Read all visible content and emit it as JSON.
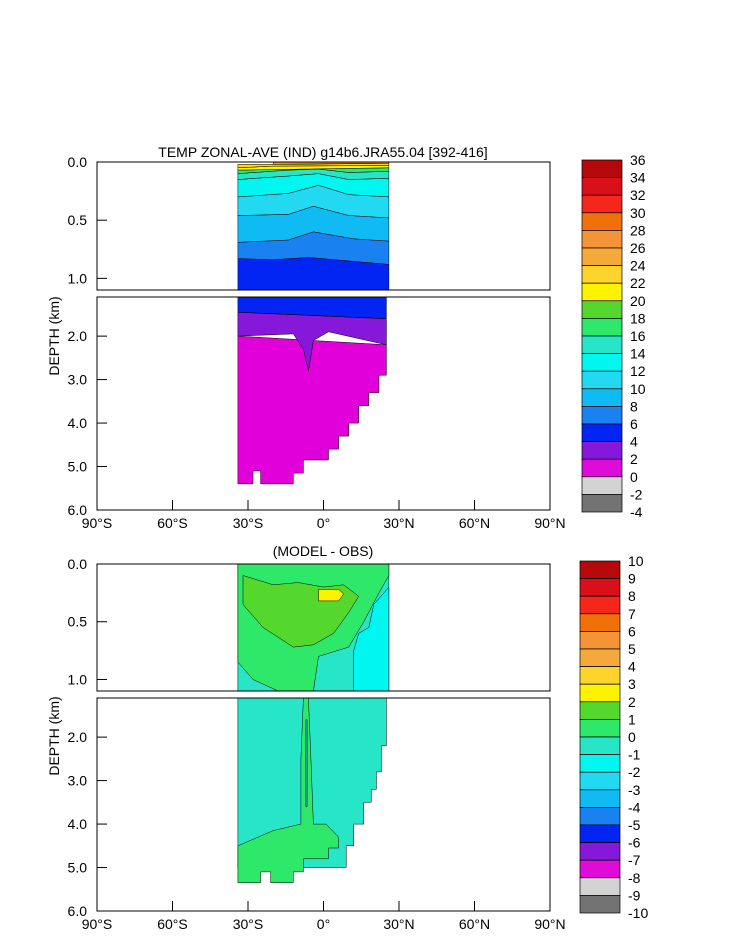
{
  "chart_data": [
    {
      "type": "heatmap",
      "title": "TEMP ZONAL-AVE (IND) g14b6.JRA55.04 [392-416]",
      "ylabel": "DEPTH (km)",
      "xlabel": "",
      "x_ticks": [
        "90°S",
        "60°S",
        "30°S",
        "0°",
        "30°N",
        "60°N",
        "90°N"
      ],
      "x_tick_values": [
        -90,
        -60,
        -30,
        0,
        30,
        60,
        90
      ],
      "y_ticks_upper": [
        "0.0",
        "0.5",
        "1.0"
      ],
      "y_ticks_upper_values": [
        0.0,
        0.5,
        1.0
      ],
      "y_ticks_lower": [
        "2.0",
        "3.0",
        "4.0",
        "5.0",
        "6.0"
      ],
      "y_ticks_lower_values": [
        2.0,
        3.0,
        4.0,
        5.0,
        6.0
      ],
      "upper_ylim": [
        0,
        1.1
      ],
      "lower_ylim": [
        1.1,
        6.0
      ],
      "data_xlim": [
        -34,
        26
      ],
      "legend": "colorbar-right",
      "colorbar_labels": [
        "36",
        "34",
        "32",
        "30",
        "28",
        "26",
        "24",
        "22",
        "20",
        "18",
        "16",
        "14",
        "12",
        "10",
        "8",
        "6",
        "4",
        "2",
        "0",
        "-2",
        "-4"
      ],
      "colorbar_colors": [
        "#b5080b",
        "#d9101a",
        "#f5261a",
        "#f0700a",
        "#f49436",
        "#f6a93b",
        "#fdd42c",
        "#fdf301",
        "#54d82d",
        "#2ee869",
        "#26e6c7",
        "#00f7ef",
        "#23d9f2",
        "#10bbf4",
        "#1a82f0",
        "#0225f4",
        "#8618da",
        "#de0bd9",
        "#e100da",
        "#d3d3d3",
        "#737373"
      ],
      "colorbar_fill_colors": [
        "#b5080b",
        "#d9101a",
        "#f5261a",
        "#f0700a",
        "#f49436",
        "#f6a93b",
        "#fdd42c",
        "#fdf301",
        "#54d82d",
        "#2ee869",
        "#26e6c7",
        "#00f7ef",
        "#23d9f2",
        "#10bbf4",
        "#1a82f0",
        "#0225f4",
        "#8618da",
        "#de0bd9",
        "#d3d3d3",
        "#737373"
      ],
      "upper_layers": [
        {
          "color": "#0225f4",
          "bounds": [
            [
              -34,
              1.1
            ],
            [
              26,
              1.1
            ],
            [
              26,
              0.88
            ],
            [
              10,
              0.85
            ],
            [
              -6,
              0.82
            ],
            [
              -20,
              0.84
            ],
            [
              -34,
              0.83
            ]
          ]
        },
        {
          "color": "#1a82f0",
          "bounds": [
            [
              -34,
              0.83
            ],
            [
              -20,
              0.84
            ],
            [
              -6,
              0.82
            ],
            [
              10,
              0.85
            ],
            [
              26,
              0.88
            ],
            [
              26,
              0.68
            ],
            [
              12,
              0.66
            ],
            [
              -4,
              0.6
            ],
            [
              -14,
              0.67
            ],
            [
              -34,
              0.69
            ]
          ]
        },
        {
          "color": "#10bbf4",
          "bounds": [
            [
              -34,
              0.69
            ],
            [
              -14,
              0.67
            ],
            [
              -4,
              0.6
            ],
            [
              12,
              0.66
            ],
            [
              26,
              0.68
            ],
            [
              26,
              0.48
            ],
            [
              10,
              0.46
            ],
            [
              -4,
              0.38
            ],
            [
              -14,
              0.45
            ],
            [
              -34,
              0.46
            ]
          ]
        },
        {
          "color": "#23d9f2",
          "bounds": [
            [
              -34,
              0.46
            ],
            [
              -14,
              0.45
            ],
            [
              -4,
              0.38
            ],
            [
              10,
              0.46
            ],
            [
              26,
              0.48
            ],
            [
              26,
              0.3
            ],
            [
              10,
              0.28
            ],
            [
              -2,
              0.2
            ],
            [
              -14,
              0.27
            ],
            [
              -34,
              0.3
            ]
          ]
        },
        {
          "color": "#00f7ef",
          "bounds": [
            [
              -34,
              0.3
            ],
            [
              -14,
              0.27
            ],
            [
              -2,
              0.2
            ],
            [
              10,
              0.28
            ],
            [
              26,
              0.3
            ],
            [
              26,
              0.14
            ],
            [
              10,
              0.15
            ],
            [
              -2,
              0.1
            ],
            [
              -14,
              0.12
            ],
            [
              -34,
              0.15
            ]
          ]
        },
        {
          "color": "#26e6c7",
          "bounds": [
            [
              -34,
              0.15
            ],
            [
              -14,
              0.12
            ],
            [
              -2,
              0.1
            ],
            [
              10,
              0.15
            ],
            [
              26,
              0.14
            ],
            [
              26,
              0.08
            ],
            [
              10,
              0.09
            ],
            [
              -2,
              0.06
            ],
            [
              -14,
              0.07
            ],
            [
              -34,
              0.1
            ]
          ]
        },
        {
          "color": "#2ee869",
          "bounds": [
            [
              -34,
              0.1
            ],
            [
              -14,
              0.07
            ],
            [
              -2,
              0.06
            ],
            [
              10,
              0.09
            ],
            [
              26,
              0.08
            ],
            [
              26,
              0.05
            ],
            [
              -34,
              0.07
            ]
          ]
        },
        {
          "color": "#fdf301",
          "bounds": [
            [
              -34,
              0.07
            ],
            [
              26,
              0.05
            ],
            [
              26,
              0.03
            ],
            [
              -20,
              0.035
            ],
            [
              -34,
              0.05
            ]
          ]
        },
        {
          "color": "#fdd42c",
          "bounds": [
            [
              -34,
              0.05
            ],
            [
              -20,
              0.035
            ],
            [
              26,
              0.03
            ],
            [
              26,
              0.01
            ],
            [
              -10,
              0.02
            ],
            [
              -34,
              0.02
            ]
          ]
        },
        {
          "color": "#f49436",
          "bounds": [
            [
              -20,
              0.02
            ],
            [
              26,
              0.01
            ],
            [
              26,
              0.0
            ],
            [
              -20,
              0.0
            ]
          ]
        }
      ],
      "lower_layers": [
        {
          "color": "#e100da",
          "bounds": [
            [
              -34,
              5.4
            ],
            [
              -28,
              5.4
            ],
            [
              -28,
              5.1
            ],
            [
              -25,
              5.1
            ],
            [
              -25,
              5.4
            ],
            [
              -12,
              5.4
            ],
            [
              -12,
              5.15
            ],
            [
              -8,
              5.15
            ],
            [
              -8,
              4.85
            ],
            [
              2,
              4.85
            ],
            [
              2,
              4.6
            ],
            [
              6,
              4.6
            ],
            [
              6,
              4.3
            ],
            [
              10,
              4.3
            ],
            [
              10,
              4.0
            ],
            [
              14,
              4.0
            ],
            [
              14,
              3.6
            ],
            [
              18,
              3.6
            ],
            [
              18,
              3.3
            ],
            [
              22,
              3.3
            ],
            [
              22,
              2.9
            ],
            [
              25,
              2.9
            ],
            [
              25,
              2.2
            ],
            [
              -34,
              2.0
            ]
          ]
        },
        {
          "color": "#8618da",
          "bounds": [
            [
              -34,
              2.0
            ],
            [
              -12,
              1.95
            ],
            [
              -8,
              2.3
            ],
            [
              -6,
              2.8
            ],
            [
              -4,
              2.1
            ],
            [
              2,
              1.9
            ],
            [
              25,
              2.2
            ],
            [
              25,
              1.6
            ],
            [
              -34,
              1.45
            ]
          ]
        },
        {
          "color": "#0225f4",
          "bounds": [
            [
              -34,
              1.45
            ],
            [
              25,
              1.6
            ],
            [
              25,
              1.1
            ],
            [
              -34,
              1.1
            ]
          ]
        }
      ]
    },
    {
      "type": "heatmap",
      "title": "(MODEL - OBS)",
      "ylabel": "DEPTH (km)",
      "xlabel": "",
      "x_ticks": [
        "90°S",
        "60°S",
        "30°S",
        "0°",
        "30°N",
        "60°N",
        "90°N"
      ],
      "x_tick_values": [
        -90,
        -60,
        -30,
        0,
        30,
        60,
        90
      ],
      "y_ticks_upper": [
        "0.0",
        "0.5",
        "1.0"
      ],
      "y_ticks_upper_values": [
        0.0,
        0.5,
        1.0
      ],
      "y_ticks_lower": [
        "2.0",
        "3.0",
        "4.0",
        "5.0",
        "6.0"
      ],
      "y_ticks_lower_values": [
        2.0,
        3.0,
        4.0,
        5.0,
        6.0
      ],
      "upper_ylim": [
        0,
        1.1
      ],
      "lower_ylim": [
        1.1,
        6.0
      ],
      "data_xlim": [
        -34,
        26
      ],
      "legend": "colorbar-right",
      "colorbar_labels": [
        "10",
        "9",
        "8",
        "7",
        "6",
        "5",
        "4",
        "3",
        "2",
        "1",
        "0",
        "-1",
        "-2",
        "-3",
        "-4",
        "-5",
        "-6",
        "-7",
        "-8",
        "-9",
        "-10"
      ],
      "colorbar_fill_colors": [
        "#b5080b",
        "#d9101a",
        "#f5261a",
        "#f0700a",
        "#f49436",
        "#f6a93b",
        "#fdd42c",
        "#fdf301",
        "#54d82d",
        "#2ee869",
        "#26e6c7",
        "#00f7ef",
        "#23d9f2",
        "#10bbf4",
        "#1a82f0",
        "#0225f4",
        "#8618da",
        "#de0bd9",
        "#d3d3d3",
        "#737373"
      ],
      "upper_layers": [
        {
          "color": "#26e6c7",
          "bounds": [
            [
              -34,
              1.1
            ],
            [
              26,
              1.1
            ],
            [
              26,
              0.0
            ],
            [
              -34,
              0.0
            ]
          ]
        },
        {
          "color": "#00f7ef",
          "bounds": [
            [
              12,
              1.1
            ],
            [
              26,
              1.1
            ],
            [
              26,
              0.2
            ],
            [
              20,
              0.35
            ],
            [
              18,
              0.55
            ],
            [
              14,
              0.6
            ],
            [
              12,
              0.75
            ]
          ]
        },
        {
          "color": "#2ee869",
          "bounds": [
            [
              -34,
              0.85
            ],
            [
              -28,
              1.0
            ],
            [
              -18,
              1.1
            ],
            [
              -4,
              1.1
            ],
            [
              -2,
              0.8
            ],
            [
              10,
              0.72
            ],
            [
              16,
              0.5
            ],
            [
              22,
              0.25
            ],
            [
              26,
              0.1
            ],
            [
              26,
              0.0
            ],
            [
              -34,
              0.0
            ]
          ]
        },
        {
          "color": "#54d82d",
          "bounds": [
            [
              -32,
              0.35
            ],
            [
              -24,
              0.55
            ],
            [
              -12,
              0.72
            ],
            [
              -4,
              0.7
            ],
            [
              4,
              0.6
            ],
            [
              10,
              0.42
            ],
            [
              14,
              0.28
            ],
            [
              8,
              0.18
            ],
            [
              0,
              0.2
            ],
            [
              -10,
              0.16
            ],
            [
              -20,
              0.18
            ],
            [
              -32,
              0.1
            ]
          ]
        },
        {
          "color": "#fdf301",
          "bounds": [
            [
              -2,
              0.22
            ],
            [
              -2,
              0.32
            ],
            [
              6,
              0.32
            ],
            [
              8,
              0.26
            ],
            [
              6,
              0.22
            ]
          ]
        }
      ],
      "lower_layers": [
        {
          "color": "#26e6c7",
          "bounds": [
            [
              -34,
              1.1
            ],
            [
              25,
              1.1
            ],
            [
              25,
              2.2
            ],
            [
              23,
              2.2
            ],
            [
              23,
              2.8
            ],
            [
              21,
              2.8
            ],
            [
              21,
              3.2
            ],
            [
              19,
              3.2
            ],
            [
              19,
              3.5
            ],
            [
              16,
              3.5
            ],
            [
              16,
              4.0
            ],
            [
              12,
              4.0
            ],
            [
              12,
              4.5
            ],
            [
              9,
              4.5
            ],
            [
              9,
              5.0
            ],
            [
              -34,
              5.0
            ]
          ]
        },
        {
          "color": "#2ee869",
          "bounds": [
            [
              -34,
              5.35
            ],
            [
              -25,
              5.35
            ],
            [
              -25,
              5.1
            ],
            [
              -21,
              5.1
            ],
            [
              -21,
              5.35
            ],
            [
              -12,
              5.35
            ],
            [
              -12,
              5.1
            ],
            [
              -8,
              5.1
            ],
            [
              -8,
              4.8
            ],
            [
              2,
              4.8
            ],
            [
              2,
              4.55
            ],
            [
              6,
              4.55
            ],
            [
              6,
              4.3
            ],
            [
              1,
              4.0
            ],
            [
              -4,
              4.0
            ],
            [
              -5,
              2.5
            ],
            [
              -6,
              1.1
            ],
            [
              -8,
              1.1
            ],
            [
              -9,
              2.5
            ],
            [
              -9,
              4.0
            ],
            [
              -20,
              4.15
            ],
            [
              -34,
              4.5
            ]
          ]
        },
        {
          "color": "#26e6c7",
          "bounds": [
            [
              -7,
              1.6
            ],
            [
              -6.5,
              1.6
            ],
            [
              -6.5,
              3.6
            ],
            [
              -7,
              3.6
            ]
          ]
        }
      ]
    }
  ]
}
